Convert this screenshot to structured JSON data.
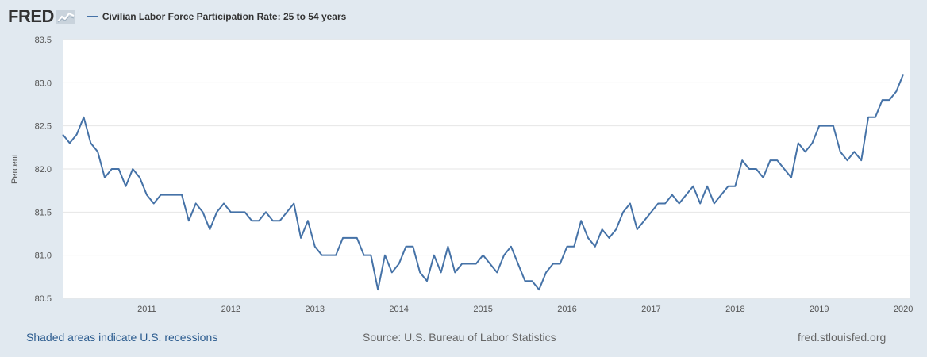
{
  "header": {
    "logo_text": "FRED",
    "series_title": "Civilian Labor Force Participation Rate: 25 to 54 years"
  },
  "footer": {
    "recessions_link": "Shaded areas indicate U.S. recessions",
    "source": "Source: U.S. Bureau of Labor Statistics",
    "site": "fred.stlouisfed.org"
  },
  "colors": {
    "background": "#e1e9f0",
    "plot_background": "#ffffff",
    "series_line": "#4572a7",
    "link": "#2c5c8f"
  },
  "icons": [
    "fred-chart-icon"
  ],
  "chart_data": {
    "type": "line",
    "ylabel": "Percent",
    "ylim": [
      80.5,
      83.5
    ],
    "yticks": [
      "80.5",
      "81.0",
      "81.5",
      "82.0",
      "82.5",
      "83.0",
      "83.5"
    ],
    "xlim": [
      "2010-01",
      "2020-02"
    ],
    "xticks": [
      "2011",
      "2012",
      "2013",
      "2014",
      "2015",
      "2016",
      "2017",
      "2018",
      "2019",
      "2020"
    ],
    "grid": "horizontal",
    "series": [
      {
        "name": "Civilian Labor Force Participation Rate: 25 to 54 years",
        "x_start": "2010-01",
        "frequency": "monthly",
        "values": [
          82.4,
          82.3,
          82.4,
          82.6,
          82.3,
          82.2,
          81.9,
          82.0,
          82.0,
          81.8,
          82.0,
          81.9,
          81.7,
          81.6,
          81.7,
          81.7,
          81.7,
          81.7,
          81.4,
          81.6,
          81.5,
          81.3,
          81.5,
          81.6,
          81.5,
          81.5,
          81.5,
          81.4,
          81.4,
          81.5,
          81.4,
          81.4,
          81.5,
          81.6,
          81.2,
          81.4,
          81.1,
          81.0,
          81.0,
          81.0,
          81.2,
          81.2,
          81.2,
          81.0,
          81.0,
          80.6,
          81.0,
          80.8,
          80.9,
          81.1,
          81.1,
          80.8,
          80.7,
          81.0,
          80.8,
          81.1,
          80.8,
          80.9,
          80.9,
          80.9,
          81.0,
          80.9,
          80.8,
          81.0,
          81.1,
          80.9,
          80.7,
          80.7,
          80.6,
          80.8,
          80.9,
          80.9,
          81.1,
          81.1,
          81.4,
          81.2,
          81.1,
          81.3,
          81.2,
          81.3,
          81.5,
          81.6,
          81.3,
          81.4,
          81.5,
          81.6,
          81.6,
          81.7,
          81.6,
          81.7,
          81.8,
          81.6,
          81.8,
          81.6,
          81.7,
          81.8,
          81.8,
          82.1,
          82.0,
          82.0,
          81.9,
          82.1,
          82.1,
          82.0,
          81.9,
          82.3,
          82.2,
          82.3,
          82.5,
          82.5,
          82.5,
          82.2,
          82.1,
          82.2,
          82.1,
          82.6,
          82.6,
          82.8,
          82.8,
          82.9,
          83.1
        ]
      }
    ]
  }
}
